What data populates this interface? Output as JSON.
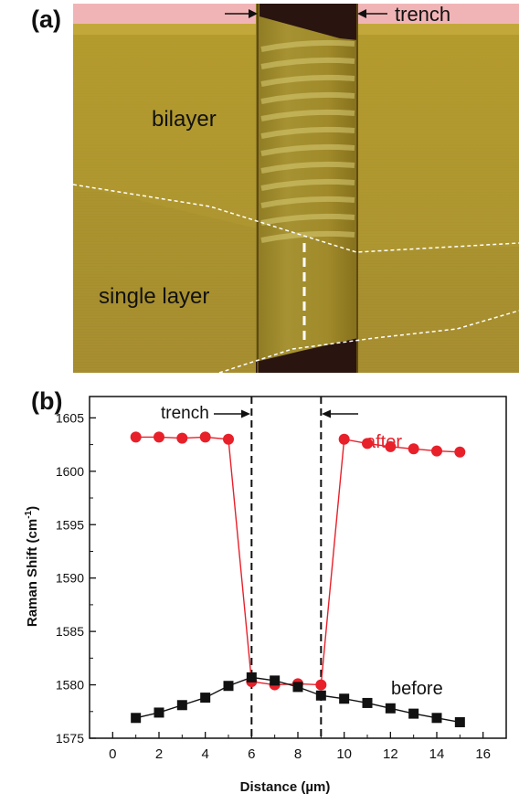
{
  "panel_a": {
    "label": "(a)",
    "annotations": {
      "trench": "trench",
      "bilayer": "bilayer",
      "single_layer": "single layer"
    }
  },
  "panel_b": {
    "label": "(b)",
    "annotations": {
      "trench": "trench",
      "after": "after",
      "before": "before"
    }
  },
  "chart_data": {
    "type": "line",
    "xlabel": "Distance (µm)",
    "ylabel_main": "Raman Shift (cm",
    "ylabel_sup": "-1",
    "ylabel_end": ")",
    "xlim": [
      -1,
      17
    ],
    "ylim": [
      1575,
      1607
    ],
    "xticks": [
      "0",
      "2",
      "4",
      "6",
      "8",
      "10",
      "12",
      "14",
      "16"
    ],
    "yticks": [
      "1575",
      "1580",
      "1585",
      "1590",
      "1595",
      "1600",
      "1605"
    ],
    "trench_lines_x": [
      6,
      9
    ],
    "series": [
      {
        "name": "after",
        "color": "#e8202a",
        "marker": "circle",
        "x": [
          1,
          2,
          3,
          4,
          5,
          6,
          7,
          8,
          9,
          10,
          11,
          12,
          13,
          14,
          15
        ],
        "y": [
          1603.2,
          1603.2,
          1603.1,
          1603.2,
          1603.0,
          1580.3,
          1580.0,
          1580.1,
          1580.0,
          1603.0,
          1602.6,
          1602.3,
          1602.1,
          1601.9,
          1601.8
        ]
      },
      {
        "name": "before",
        "color": "#111111",
        "marker": "square",
        "x": [
          1,
          2,
          3,
          4,
          5,
          6,
          7,
          8,
          9,
          10,
          11,
          12,
          13,
          14,
          15
        ],
        "y": [
          1576.9,
          1577.4,
          1578.1,
          1578.8,
          1579.9,
          1580.7,
          1580.4,
          1579.8,
          1579.0,
          1578.7,
          1578.3,
          1577.8,
          1577.3,
          1576.9,
          1576.5
        ]
      }
    ]
  }
}
